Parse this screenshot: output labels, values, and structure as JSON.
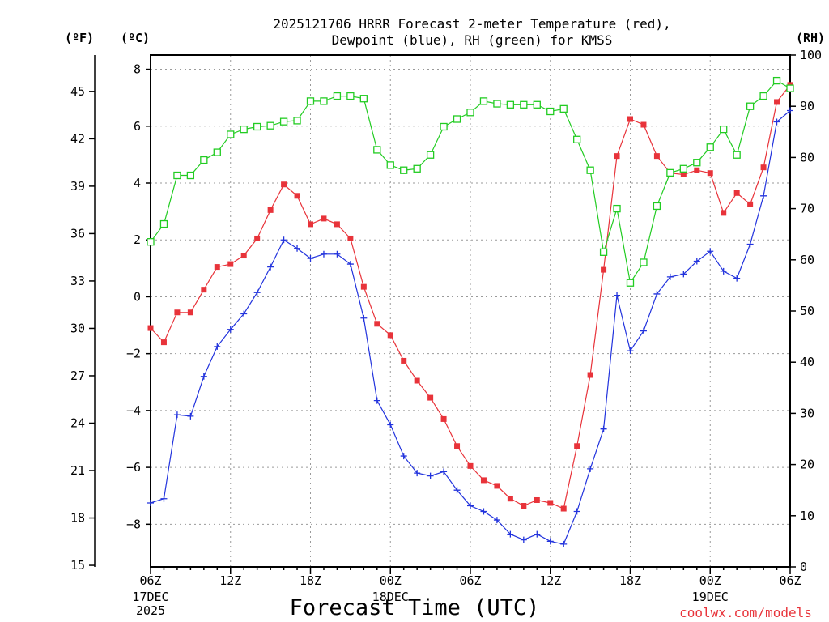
{
  "chart_data": {
    "type": "line",
    "title": [
      "2025121706 HRRR Forecast 2-meter Temperature (red),",
      "Dewpoint (blue), RH (green) for KMSS"
    ],
    "xlabel": "Forecast Time (UTC)",
    "credit": "coolwx.com/models",
    "units": {
      "fahrenheit": "(ºF)",
      "celsius": "(ºC)",
      "rh": "(RH)"
    },
    "x_range": [
      0,
      48
    ],
    "x_ticks": [
      {
        "hour": 0,
        "label": "06Z"
      },
      {
        "hour": 6,
        "label": "12Z"
      },
      {
        "hour": 12,
        "label": "18Z"
      },
      {
        "hour": 18,
        "label": "00Z"
      },
      {
        "hour": 24,
        "label": "06Z"
      },
      {
        "hour": 30,
        "label": "12Z"
      },
      {
        "hour": 36,
        "label": "18Z"
      },
      {
        "hour": 42,
        "label": "00Z"
      },
      {
        "hour": 48,
        "label": "06Z"
      }
    ],
    "date_labels": [
      {
        "hour": 0,
        "lines": [
          "17DEC",
          "2025"
        ]
      },
      {
        "hour": 18,
        "lines": [
          "18DEC"
        ]
      },
      {
        "hour": 42,
        "lines": [
          "19DEC"
        ]
      }
    ],
    "y_celsius": {
      "range": [
        -9.5,
        8.5
      ],
      "ticks": [
        -8,
        -6,
        -4,
        -2,
        0,
        2,
        4,
        6,
        8
      ]
    },
    "y_fahrenheit": {
      "range": [
        14.9,
        47.3
      ],
      "ticks": [
        15,
        18,
        21,
        24,
        27,
        30,
        33,
        36,
        39,
        42,
        45
      ]
    },
    "y_rh": {
      "range": [
        0,
        100
      ],
      "ticks": [
        0,
        10,
        20,
        30,
        40,
        50,
        60,
        70,
        80,
        90,
        100
      ]
    },
    "series": [
      {
        "name": "2-meter Temperature",
        "axis": "celsius",
        "color": "#e8333a",
        "marker": "filled-square",
        "values": [
          -1.1,
          -1.6,
          -0.55,
          -0.55,
          0.25,
          1.05,
          1.15,
          1.45,
          2.05,
          3.05,
          3.95,
          3.55,
          2.55,
          2.75,
          2.55,
          2.05,
          0.35,
          -0.95,
          -1.35,
          -2.25,
          -2.95,
          -3.55,
          -4.3,
          -5.25,
          -5.95,
          -6.45,
          -6.65,
          -7.1,
          -7.35,
          -7.15,
          -7.25,
          -7.45,
          -5.25,
          -2.75,
          0.95,
          4.95,
          6.25,
          6.05,
          4.95,
          4.35,
          4.3,
          4.45,
          4.35,
          2.95,
          3.65,
          3.25,
          4.55,
          6.85,
          7.45
        ]
      },
      {
        "name": "Dewpoint",
        "axis": "celsius",
        "color": "#2233dd",
        "marker": "plus",
        "values": [
          -7.25,
          -7.1,
          -4.15,
          -4.2,
          -2.8,
          -1.75,
          -1.15,
          -0.6,
          0.15,
          1.05,
          2.0,
          1.7,
          1.35,
          1.5,
          1.5,
          1.15,
          -0.75,
          -3.65,
          -4.5,
          -5.6,
          -6.2,
          -6.3,
          -6.15,
          -6.8,
          -7.35,
          -7.55,
          -7.85,
          -8.35,
          -8.55,
          -8.35,
          -8.6,
          -8.7,
          -7.55,
          -6.05,
          -4.65,
          0.05,
          -1.9,
          -1.2,
          0.1,
          0.7,
          0.8,
          1.25,
          1.6,
          0.9,
          0.65,
          1.85,
          3.55,
          6.15,
          6.55
        ]
      },
      {
        "name": "RH",
        "axis": "rh",
        "color": "#22cc22",
        "marker": "open-square",
        "values": [
          63.5,
          67.0,
          76.5,
          76.5,
          79.5,
          81.0,
          84.5,
          85.5,
          86.0,
          86.2,
          87.0,
          87.2,
          91.0,
          91.0,
          92.0,
          92.0,
          91.5,
          81.5,
          78.5,
          77.5,
          77.8,
          80.5,
          86.0,
          87.5,
          88.8,
          91.0,
          90.5,
          90.3,
          90.3,
          90.3,
          89.0,
          89.5,
          83.5,
          77.5,
          61.5,
          70.0,
          55.5,
          59.5,
          70.5,
          77.0,
          77.8,
          79.0,
          82.0,
          85.5,
          80.5,
          90.0,
          92.0,
          95.0,
          93.5
        ]
      }
    ],
    "grid": true,
    "legend": "in-title"
  }
}
